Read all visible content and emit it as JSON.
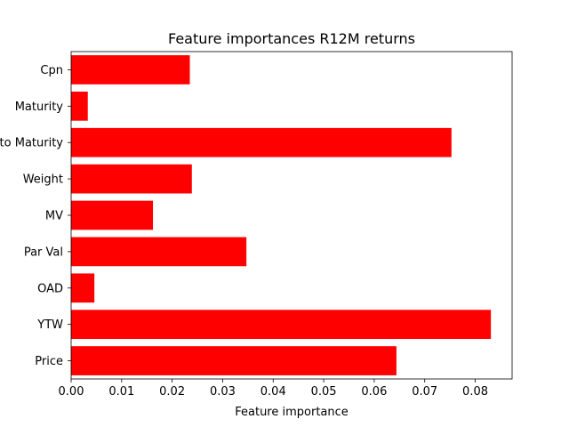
{
  "chart_data": {
    "type": "bar",
    "orientation": "horizontal",
    "title": "Feature importances R12M returns",
    "xlabel": "Feature importance",
    "ylabel": "",
    "categories": [
      "Cpn",
      "Maturity",
      "Years to Maturity",
      "Weight",
      "MV",
      "Par Val",
      "OAD",
      "YTW",
      "Price"
    ],
    "values": [
      0.0235,
      0.0033,
      0.0753,
      0.0239,
      0.0162,
      0.0347,
      0.0046,
      0.0831,
      0.0644
    ],
    "xlim": [
      0.0,
      0.0873
    ],
    "xticks": [
      0.0,
      0.01,
      0.02,
      0.03,
      0.04,
      0.05,
      0.06,
      0.07,
      0.08
    ],
    "xtick_labels": [
      "0.00",
      "0.01",
      "0.02",
      "0.03",
      "0.04",
      "0.05",
      "0.06",
      "0.07",
      "0.08"
    ],
    "bar_color": "#ff0000",
    "grid": false,
    "legend": "none"
  }
}
